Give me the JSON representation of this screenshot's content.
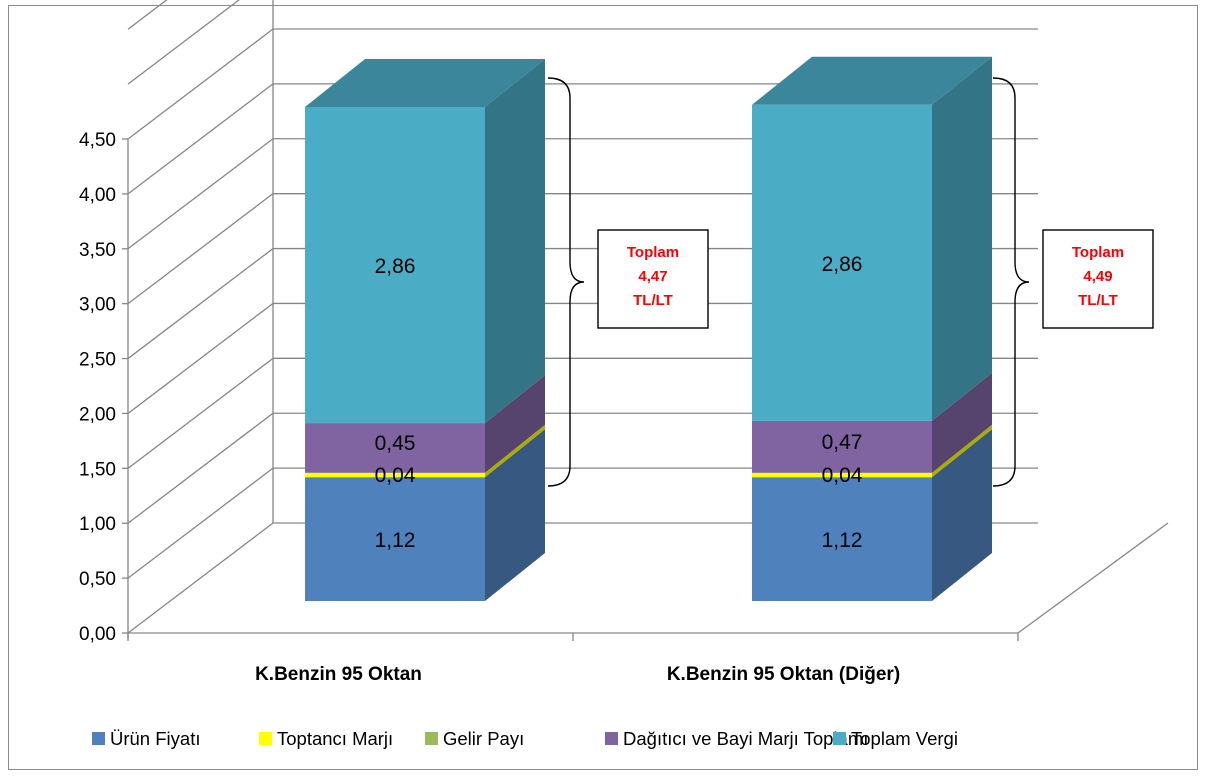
{
  "chart_data": {
    "type": "bar",
    "stacked": true,
    "three_d": true,
    "categories": [
      "K.Benzin 95 Oktan",
      "K.Benzin 95 Oktan (Diğer)"
    ],
    "series": [
      {
        "name": "Ürün Fiyatı",
        "values": [
          1.12,
          1.12
        ],
        "labels": [
          "1,12",
          "1,12"
        ],
        "color": "#4f81bd"
      },
      {
        "name": "Toptancı Marjı",
        "values": [
          0.04,
          0.04
        ],
        "labels": [
          "0,04",
          "0,04"
        ],
        "color": "#ffff00"
      },
      {
        "name": "Gelir Payı",
        "values": [
          0.0,
          0.0
        ],
        "labels": [
          "",
          ""
        ],
        "color": "#9bbb59"
      },
      {
        "name": "Dağıtıcı ve Bayi Marjı Toplamı",
        "values": [
          0.45,
          0.47
        ],
        "labels": [
          "0,45",
          "0,47"
        ],
        "color": "#8064a2"
      },
      {
        "name": "Toplam Vergi",
        "values": [
          2.86,
          2.86
        ],
        "labels": [
          "2,86",
          "2,86"
        ],
        "color": "#4bacc6"
      }
    ],
    "ylim": [
      0,
      4.5
    ],
    "yticks": [
      "0,00",
      "0,50",
      "1,00",
      "1,50",
      "2,00",
      "2,50",
      "3,00",
      "3,50",
      "4,00",
      "4,50"
    ],
    "grid": true,
    "legend": "bottom",
    "annotations": [
      {
        "lines": [
          "Toplam",
          "4,47",
          "TL/LT"
        ],
        "color": "#ff0000"
      },
      {
        "lines": [
          "Toplam",
          "4,49",
          "TL/LT"
        ],
        "color": "#ff0000"
      }
    ]
  }
}
